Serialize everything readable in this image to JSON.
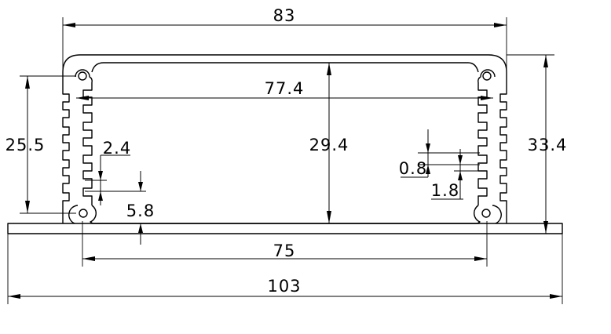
{
  "drawing": {
    "type": "aluminum enclosure extrusion profile, cross-section with dimensions",
    "units": "mm"
  },
  "dimensions": {
    "overall_top_width": "83",
    "inner_width": "77.4",
    "inner_height": "29.4",
    "outer_height": "33.4",
    "fin_region_height": "25.5",
    "fin_width": "2.4",
    "flange_thickness": "5.8",
    "fin_gap_small": "0.8",
    "fin_pitch": "1.8",
    "screw_boss_spacing": "75",
    "base_width": "103"
  }
}
